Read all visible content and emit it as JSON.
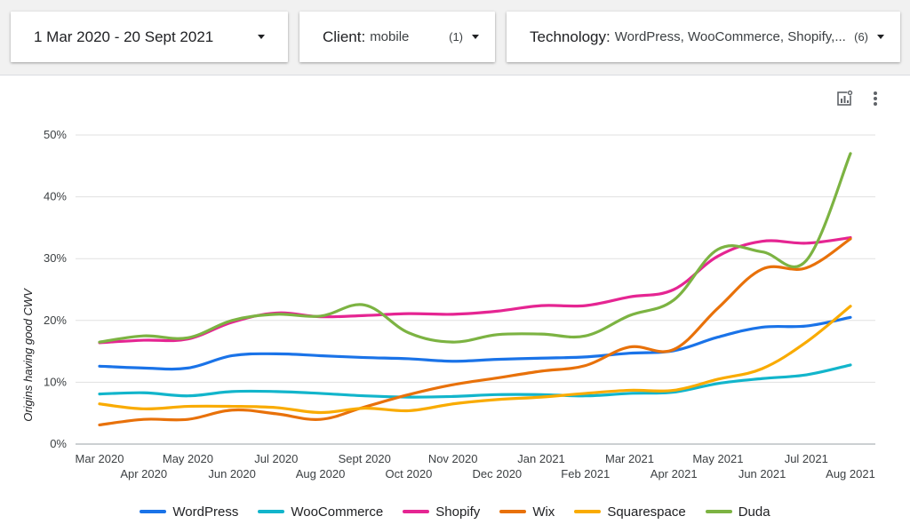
{
  "filters": {
    "date_range": "1 Mar 2020 - 20 Sept 2021",
    "client_label": "Client:",
    "client_value": "mobile",
    "client_count": "(1)",
    "technology_label": "Technology:",
    "technology_value": "WordPress, WooCommerce, Shopify,...",
    "technology_count": "(6)"
  },
  "toolbar": {
    "chart_settings_icon": "chart-settings-icon",
    "more_icon": "more-vert-icon"
  },
  "chart_data": {
    "type": "line",
    "ylabel": "Origins having good CWV",
    "xlabel": "",
    "ylim": [
      0,
      50
    ],
    "yticks": [
      "0%",
      "10%",
      "20%",
      "30%",
      "40%",
      "50%"
    ],
    "ytick_values": [
      0,
      10,
      20,
      30,
      40,
      50
    ],
    "grid": true,
    "legend_position": "bottom",
    "categories": [
      "Mar 2020",
      "Apr 2020",
      "May 2020",
      "Jun 2020",
      "Jul 2020",
      "Aug 2020",
      "Sept 2020",
      "Oct 2020",
      "Nov 2020",
      "Dec 2020",
      "Jan 2021",
      "Feb 2021",
      "Mar 2021",
      "Apr 2021",
      "May 2021",
      "Jun 2021",
      "Jul 2021",
      "Aug 2021"
    ],
    "series": [
      {
        "name": "WordPress",
        "color": "#1a73e8",
        "values": [
          12.6,
          12.3,
          12.3,
          14.3,
          14.6,
          14.3,
          14.0,
          13.8,
          13.4,
          13.7,
          13.9,
          14.1,
          14.7,
          15.1,
          17.3,
          18.9,
          19.1,
          20.5
        ]
      },
      {
        "name": "WooCommerce",
        "color": "#12b5cb",
        "values": [
          8.1,
          8.3,
          7.8,
          8.5,
          8.5,
          8.2,
          7.8,
          7.6,
          7.7,
          8.0,
          8.0,
          7.8,
          8.2,
          8.4,
          9.8,
          10.6,
          11.2,
          12.8
        ]
      },
      {
        "name": "Shopify",
        "color": "#e52592",
        "values": [
          16.4,
          16.8,
          17.0,
          19.7,
          21.2,
          20.6,
          20.8,
          21.1,
          21.0,
          21.5,
          22.4,
          22.4,
          23.8,
          25.0,
          30.4,
          32.8,
          32.5,
          33.4
        ]
      },
      {
        "name": "Wix",
        "color": "#e8710a",
        "values": [
          3.1,
          4.0,
          4.0,
          5.5,
          4.9,
          4.0,
          6.0,
          8.0,
          9.6,
          10.7,
          11.8,
          12.7,
          15.7,
          15.3,
          22.0,
          28.3,
          28.5,
          33.2
        ]
      },
      {
        "name": "Squarespace",
        "color": "#f9ab00",
        "values": [
          6.5,
          5.7,
          6.1,
          6.1,
          5.9,
          5.1,
          5.8,
          5.4,
          6.5,
          7.2,
          7.6,
          8.2,
          8.7,
          8.7,
          10.5,
          12.2,
          16.5,
          22.3
        ]
      },
      {
        "name": "Duda",
        "color": "#7cb342",
        "values": [
          16.5,
          17.5,
          17.2,
          20.0,
          21.0,
          20.7,
          22.5,
          18.0,
          16.5,
          17.7,
          17.8,
          17.5,
          20.8,
          23.3,
          31.5,
          31.1,
          29.7,
          47.0
        ]
      }
    ]
  }
}
